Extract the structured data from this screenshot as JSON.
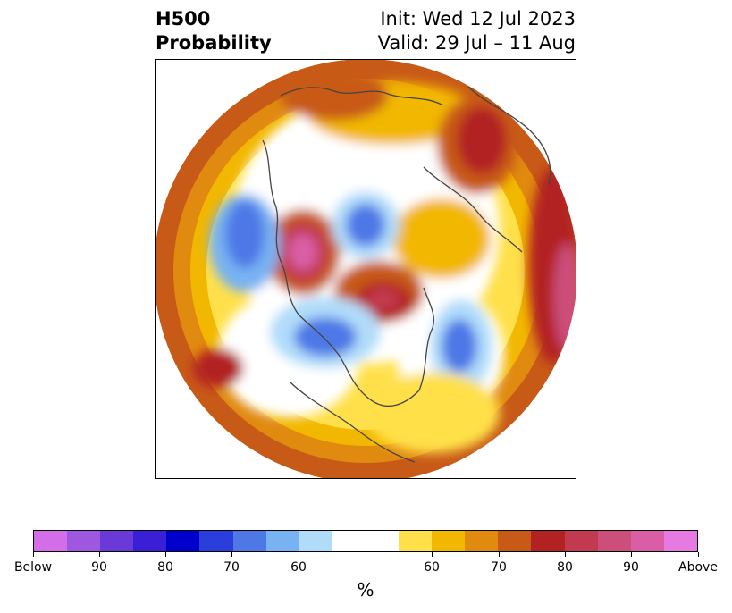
{
  "title": {
    "left_line1": "H500",
    "left_line2": "Probability",
    "right_line1": "Init: Wed 12 Jul 2023",
    "right_line2": "Valid: 29 Jul – 11 Aug"
  },
  "map": {
    "projection": "north polar stereographic",
    "colors": {
      "below_100": "#d36ee8",
      "below_90": "#9e58e0",
      "below_85": "#6a3ad8",
      "below_80": "#3a1fd6",
      "below_75": "#0000cc",
      "below_70": "#2a3edc",
      "below_65": "#4d78e6",
      "below_60": "#78b2f2",
      "below_55": "#b0dcfa",
      "neutral": "#ffffff",
      "above_55": "#ffe04a",
      "above_60": "#f2b700",
      "above_65": "#e08a10",
      "above_70": "#c85a18",
      "above_75": "#b22222",
      "above_80": "#c23a50",
      "above_85": "#cc4e7a",
      "above_90": "#d95ea6",
      "above_100": "#e67ae0"
    }
  },
  "colorbar": {
    "unit": "%",
    "tick_labels": [
      "Below",
      "90",
      "80",
      "70",
      "60",
      "60",
      "70",
      "80",
      "90",
      "Above"
    ]
  }
}
